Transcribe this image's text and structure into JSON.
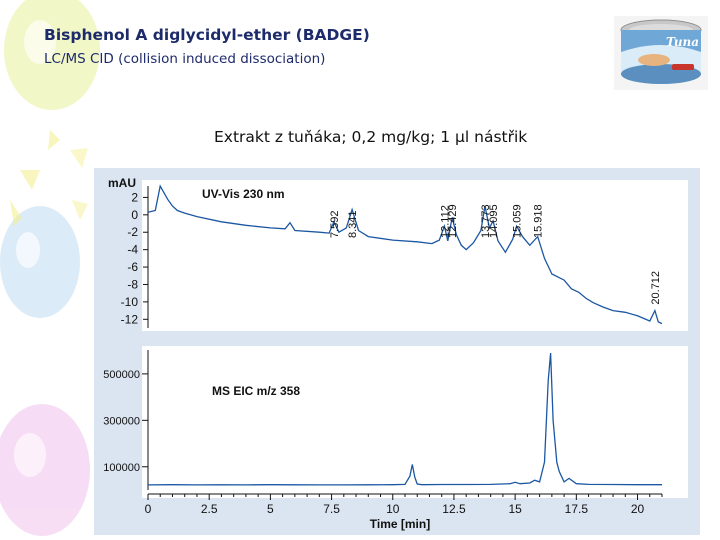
{
  "slide": {
    "title": "Bisphenol A diglycidyl-ether (BADGE)",
    "subtitle": "LC/MS CID (collision induced dissociation)",
    "caption": "Extrakt z tuňáka; 0,2 mg/kg; 1 µl nástřik"
  },
  "product_image": {
    "icon": "tuna-can-icon",
    "brand_text": "Tuna"
  },
  "colors": {
    "trace": "#1c57a3",
    "panel_bg": "#dbe4f1",
    "text": "#1e2b6b"
  },
  "chart_data": [
    {
      "type": "line",
      "panel": "top",
      "label": "UV-Vis 230 nm",
      "ylabel": "mAU",
      "ylim": [
        -13,
        4
      ],
      "yticks": [
        2,
        0,
        -2,
        -4,
        -6,
        -8,
        -10,
        -12
      ],
      "xlim": [
        0,
        21
      ],
      "peak_labels": [
        "7.592",
        "8.341",
        "12.112",
        "12.429",
        "13.773",
        "14.095",
        "15.059",
        "15.918",
        "20.712"
      ],
      "peak_times": [
        7.592,
        8.341,
        12.112,
        12.429,
        13.773,
        14.095,
        15.059,
        15.918,
        20.712
      ],
      "x": [
        0,
        0.3,
        0.5,
        0.8,
        1.0,
        1.2,
        1.5,
        2.0,
        3.0,
        4.0,
        5.0,
        5.6,
        5.8,
        6.0,
        7.0,
        7.4,
        7.6,
        7.8,
        8.1,
        8.34,
        8.6,
        9.0,
        10.0,
        11.0,
        11.6,
        11.9,
        12.11,
        12.25,
        12.43,
        12.6,
        12.8,
        13.0,
        13.3,
        13.6,
        13.77,
        13.95,
        14.1,
        14.3,
        14.6,
        14.9,
        15.06,
        15.3,
        15.6,
        15.92,
        16.2,
        16.5,
        17.0,
        17.3,
        17.6,
        17.9,
        18.2,
        18.6,
        19.0,
        19.5,
        20.0,
        20.5,
        20.71,
        20.85,
        21.0
      ],
      "y": [
        0.3,
        0.5,
        3.3,
        1.8,
        1.0,
        0.5,
        0.2,
        -0.2,
        -0.8,
        -1.2,
        -1.5,
        -1.6,
        -0.9,
        -1.8,
        -2.0,
        -2.1,
        -0.8,
        -2.0,
        -1.5,
        0.6,
        -1.8,
        -2.5,
        -2.9,
        -3.1,
        -3.3,
        -2.9,
        -1.3,
        -3.0,
        -0.3,
        -2.3,
        -3.5,
        -4.0,
        -3.2,
        -1.8,
        1.0,
        -1.5,
        -0.7,
        -3.0,
        -4.3,
        -2.8,
        -1.3,
        -2.5,
        -3.5,
        -2.5,
        -5.0,
        -6.8,
        -7.5,
        -8.5,
        -8.9,
        -9.6,
        -10.1,
        -10.6,
        -11.0,
        -11.2,
        -11.6,
        -12.2,
        -11.0,
        -12.3,
        -12.5
      ]
    },
    {
      "type": "line",
      "panel": "bottom",
      "label": "MS EIC m/z 358",
      "xlabel": "Time [min]",
      "ylim": [
        0,
        620000
      ],
      "yticks": [
        500000,
        300000,
        100000
      ],
      "xlim": [
        0,
        21
      ],
      "xticks": [
        0,
        2.5,
        5,
        7.5,
        10,
        12.5,
        15,
        17.5,
        20
      ],
      "x": [
        0,
        1,
        2,
        3,
        4,
        5,
        6,
        7,
        8,
        9,
        10,
        10.5,
        10.7,
        10.8,
        10.9,
        11.0,
        11.2,
        12,
        13,
        14,
        14.8,
        15.0,
        15.2,
        15.6,
        15.8,
        16.0,
        16.2,
        16.35,
        16.45,
        16.55,
        16.7,
        16.8,
        17.0,
        17.2,
        17.5,
        18,
        19,
        20,
        21
      ],
      "y": [
        22000,
        23000,
        22000,
        22500,
        22000,
        23000,
        22500,
        22000,
        22000,
        22500,
        23000,
        24000,
        60000,
        110000,
        55000,
        26000,
        23000,
        23500,
        23500,
        24000,
        27000,
        33000,
        27000,
        30000,
        42000,
        35000,
        120000,
        470000,
        590000,
        300000,
        120000,
        80000,
        35000,
        50000,
        27000,
        24000,
        23500,
        23000,
        23000
      ]
    }
  ]
}
